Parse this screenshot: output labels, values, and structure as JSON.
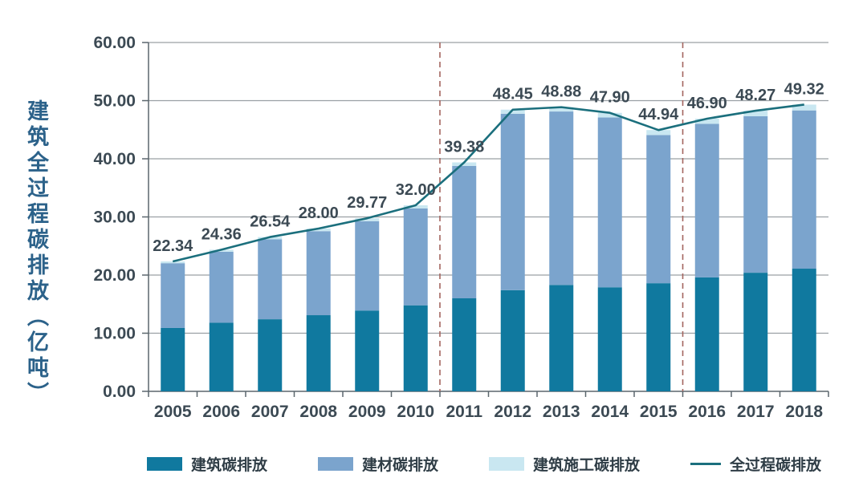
{
  "chart_data": {
    "type": "bar",
    "stacked": true,
    "title": "",
    "ylabel": "建筑全过程碳排放（亿吨）",
    "xlabel": "",
    "ylim": [
      0,
      60
    ],
    "yticks": [
      "0.00",
      "10.00",
      "20.00",
      "30.00",
      "40.00",
      "50.00",
      "60.00"
    ],
    "grid": true,
    "legend_position": "bottom",
    "categories": [
      "2005",
      "2006",
      "2007",
      "2008",
      "2009",
      "2010",
      "2011",
      "2012",
      "2013",
      "2014",
      "2015",
      "2016",
      "2017",
      "2018"
    ],
    "series": [
      {
        "name": "建筑碳排放",
        "color": "#10799f",
        "values": [
          10.9,
          11.8,
          12.4,
          13.1,
          13.9,
          14.8,
          16.0,
          17.4,
          18.3,
          17.9,
          18.6,
          19.6,
          20.4,
          21.1
        ]
      },
      {
        "name": "建材碳排放",
        "color": "#7ba4cd",
        "values": [
          11.14,
          12.21,
          13.74,
          14.45,
          15.37,
          16.65,
          22.78,
          30.35,
          29.83,
          29.2,
          25.49,
          26.4,
          26.92,
          27.22
        ]
      },
      {
        "name": "建筑施工碳排放",
        "color": "#c9e7f1",
        "values": [
          0.3,
          0.35,
          0.4,
          0.45,
          0.5,
          0.55,
          0.6,
          0.7,
          0.75,
          0.8,
          0.85,
          0.9,
          0.95,
          1.0
        ]
      }
    ],
    "line_series": {
      "name": "全过程碳排放",
      "color": "#1b6f7d",
      "values": [
        22.34,
        24.36,
        26.54,
        28.0,
        29.77,
        32.0,
        39.38,
        48.45,
        48.88,
        47.9,
        44.94,
        46.9,
        48.27,
        49.32
      ]
    },
    "point_labels": [
      "22.34",
      "24.36",
      "26.54",
      "28.00",
      "29.77",
      "32.00",
      "39.38",
      "48.45",
      "48.88",
      "47.90",
      "44.94",
      "46.90",
      "48.27",
      "49.32"
    ],
    "dividers_after_index": [
      5,
      10
    ],
    "colors": {
      "divider": "#a3655f",
      "gridline": "#9aa0a4",
      "axis": "#5b666d",
      "tick_text": "#3c4a54",
      "label_text": "#3c4a54",
      "y_title": "#2c628a",
      "legend_text": "#2f3d46"
    }
  }
}
